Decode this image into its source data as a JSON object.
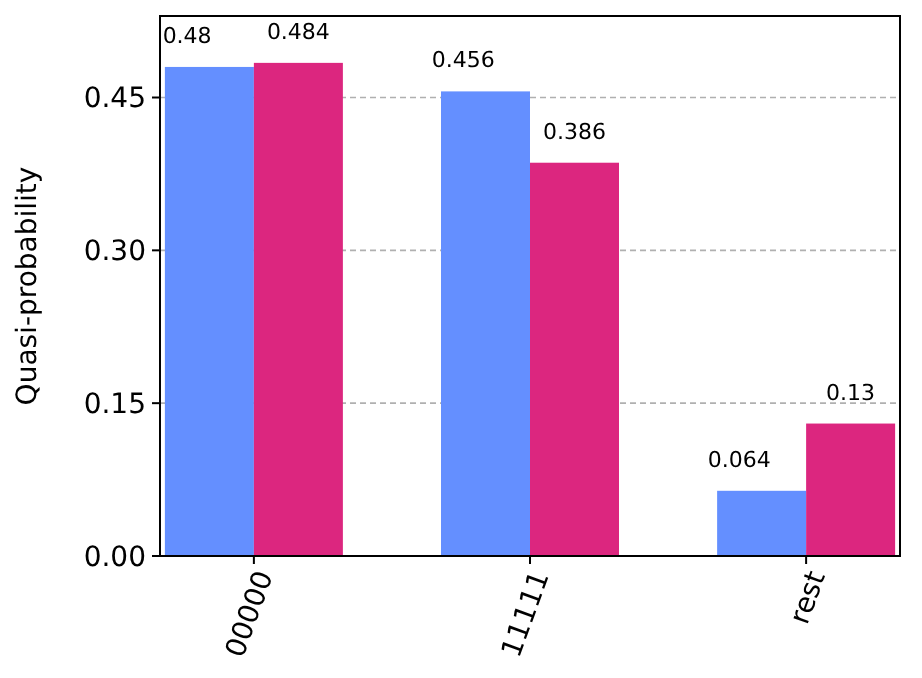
{
  "chart_data": {
    "type": "bar",
    "ylabel": "Quasi-probability",
    "categories": [
      "00000",
      "11111",
      "rest"
    ],
    "series": [
      {
        "color": "#648fff",
        "values": [
          0.48,
          0.456,
          0.064
        ]
      },
      {
        "color": "#dc267f",
        "values": [
          0.484,
          0.386,
          0.13
        ]
      }
    ],
    "ylim": [
      0,
      0.53
    ],
    "yticks": [
      {
        "value": 0,
        "label": "0.00"
      },
      {
        "value": 0.15,
        "label": "0.15"
      },
      {
        "value": 0.3,
        "label": "0.30"
      },
      {
        "value": 0.45,
        "label": "0.45"
      }
    ],
    "grid": "y",
    "data_labels": true
  }
}
